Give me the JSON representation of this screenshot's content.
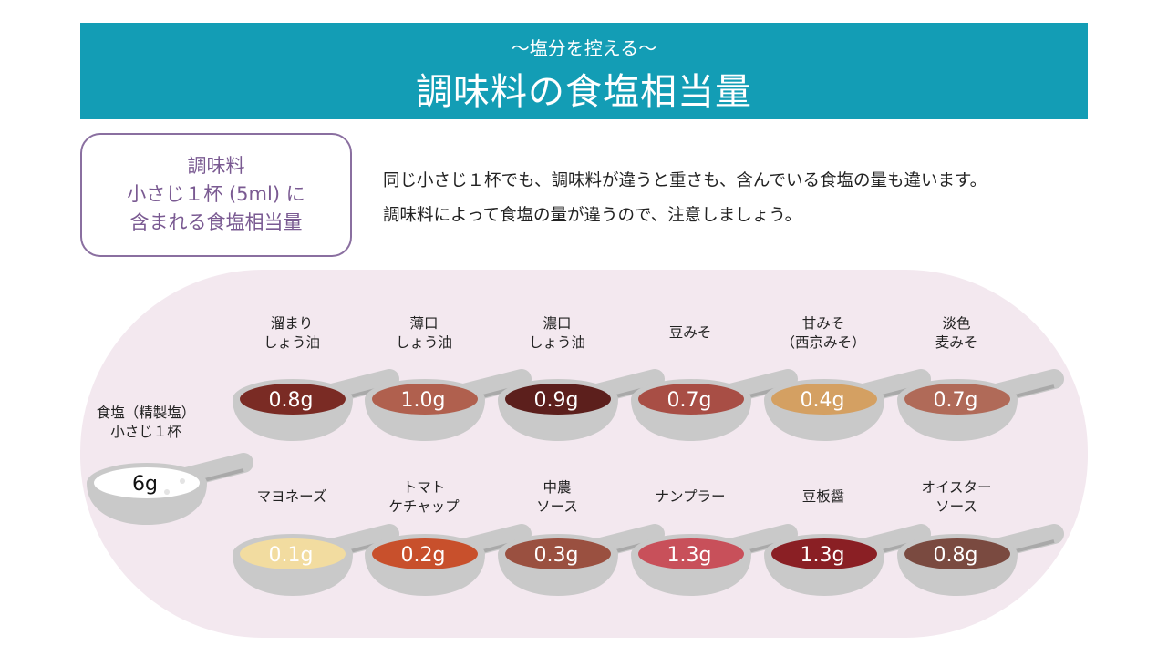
{
  "header": {
    "subtitle": "～塩分を控える～",
    "title": "調味料の食塩相当量"
  },
  "box": {
    "lines": [
      "調味料",
      "小さじ１杯 (5ml) に",
      "含まれる食塩相当量"
    ]
  },
  "intro": {
    "lines": [
      "同じ小さじ１杯でも、調味料が違うと重さも、含んでいる食塩の量も違います。",
      "調味料によって食塩の量が違うので、注意しましょう。"
    ]
  },
  "reference": {
    "label": [
      "食塩（精製塩）",
      "小さじ１杯"
    ],
    "value": "6g",
    "color": "#ffffff"
  },
  "items": [
    {
      "label": [
        "溜まり",
        "しょう油"
      ],
      "value": "0.8g",
      "color": "#7a2b24"
    },
    {
      "label": [
        "薄口",
        "しょう油"
      ],
      "value": "1.0g",
      "color": "#b0604e"
    },
    {
      "label": [
        "濃口",
        "しょう油"
      ],
      "value": "0.9g",
      "color": "#5c1f1c"
    },
    {
      "label": [
        "豆みそ"
      ],
      "value": "0.7g",
      "color": "#a84e45"
    },
    {
      "label": [
        "甘みそ",
        "（西京みそ）"
      ],
      "value": "0.4g",
      "color": "#d4a062"
    },
    {
      "label": [
        "淡色",
        "麦みそ"
      ],
      "value": "0.7g",
      "color": "#b06a58"
    },
    {
      "label": [
        "マヨネーズ"
      ],
      "value": "0.1g",
      "color": "#f2dca0"
    },
    {
      "label": [
        "トマト",
        "ケチャップ"
      ],
      "value": "0.2g",
      "color": "#c8502c"
    },
    {
      "label": [
        "中農",
        "ソース"
      ],
      "value": "0.3g",
      "color": "#9a5040"
    },
    {
      "label": [
        "ナンプラー"
      ],
      "value": "1.3g",
      "color": "#c8505a"
    },
    {
      "label": [
        "豆板醤"
      ],
      "value": "1.3g",
      "color": "#8a1f24"
    },
    {
      "label": [
        "オイスター",
        "ソース"
      ],
      "value": "0.8g",
      "color": "#7a4a40"
    }
  ]
}
